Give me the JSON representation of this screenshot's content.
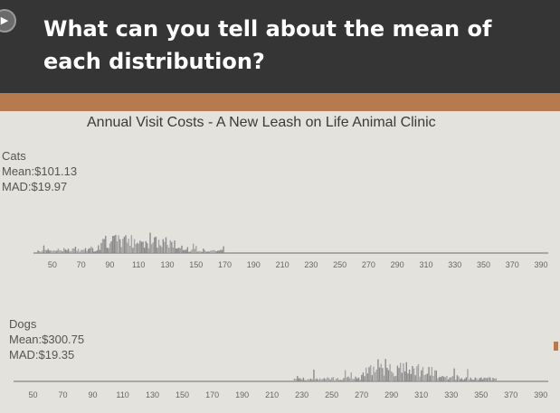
{
  "header": {
    "question": "What can you tell about the mean of each distribution?",
    "audio_icon": "speaker-icon"
  },
  "chart_data": [
    {
      "type": "histogram",
      "title": "Annual Visit Costs - A New Leash on Life Animal Clinic",
      "label": "Cats",
      "mean_text": "Mean:$101.13",
      "mad_text": "MAD:$19.97",
      "mean": 101.13,
      "mad": 19.97,
      "x_ticks": [
        50,
        70,
        90,
        110,
        130,
        150,
        170,
        190,
        210,
        230,
        250,
        270,
        290,
        310,
        330,
        350,
        370,
        390
      ],
      "xlim": [
        40,
        395
      ],
      "data_range": [
        40,
        170
      ],
      "peak_region": [
        85,
        135
      ]
    },
    {
      "type": "histogram",
      "label": "Dogs",
      "mean_text": "Mean:$300.75",
      "mad_text": "MAD:$19.35",
      "mean": 300.75,
      "mad": 19.35,
      "x_ticks": [
        50,
        70,
        90,
        110,
        130,
        150,
        170,
        190,
        210,
        230,
        250,
        270,
        290,
        310,
        330,
        350,
        370,
        390
      ],
      "xlim": [
        40,
        395
      ],
      "data_range": [
        225,
        360
      ],
      "peak_region": [
        270,
        320
      ]
    }
  ]
}
